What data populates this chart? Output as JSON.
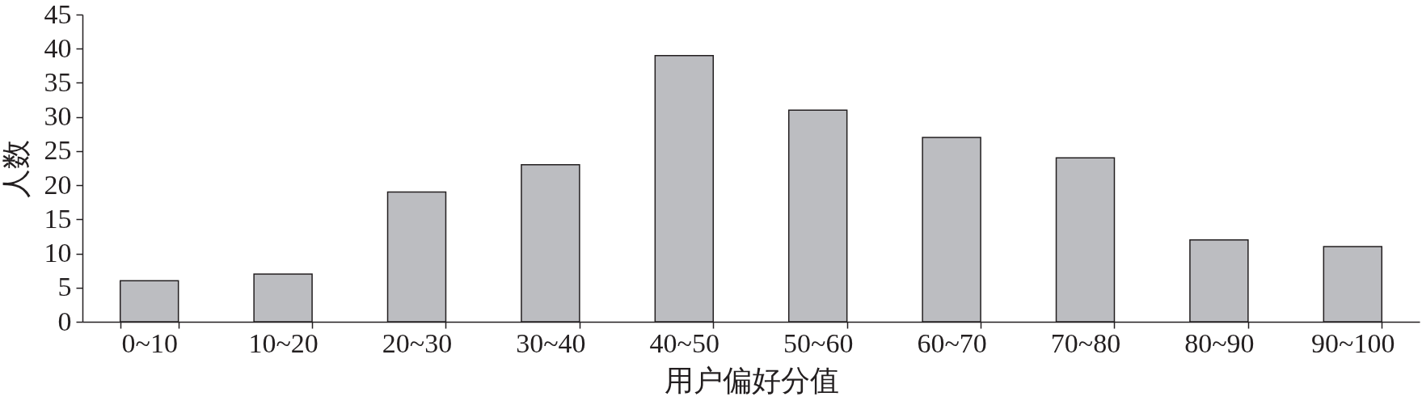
{
  "chart_data": {
    "type": "bar",
    "xlabel": "用户偏好分值",
    "ylabel": "人数",
    "categories": [
      "0~10",
      "10~20",
      "20~30",
      "30~40",
      "40~50",
      "50~60",
      "60~70",
      "70~80",
      "80~90",
      "90~100"
    ],
    "values": [
      6,
      7,
      19,
      23,
      39,
      31,
      27,
      24,
      12,
      11
    ],
    "color": "#bcbdc1",
    "ylim": [
      0,
      45
    ],
    "yticks": [
      0,
      5,
      10,
      15,
      20,
      25,
      30,
      35,
      40,
      45
    ]
  }
}
